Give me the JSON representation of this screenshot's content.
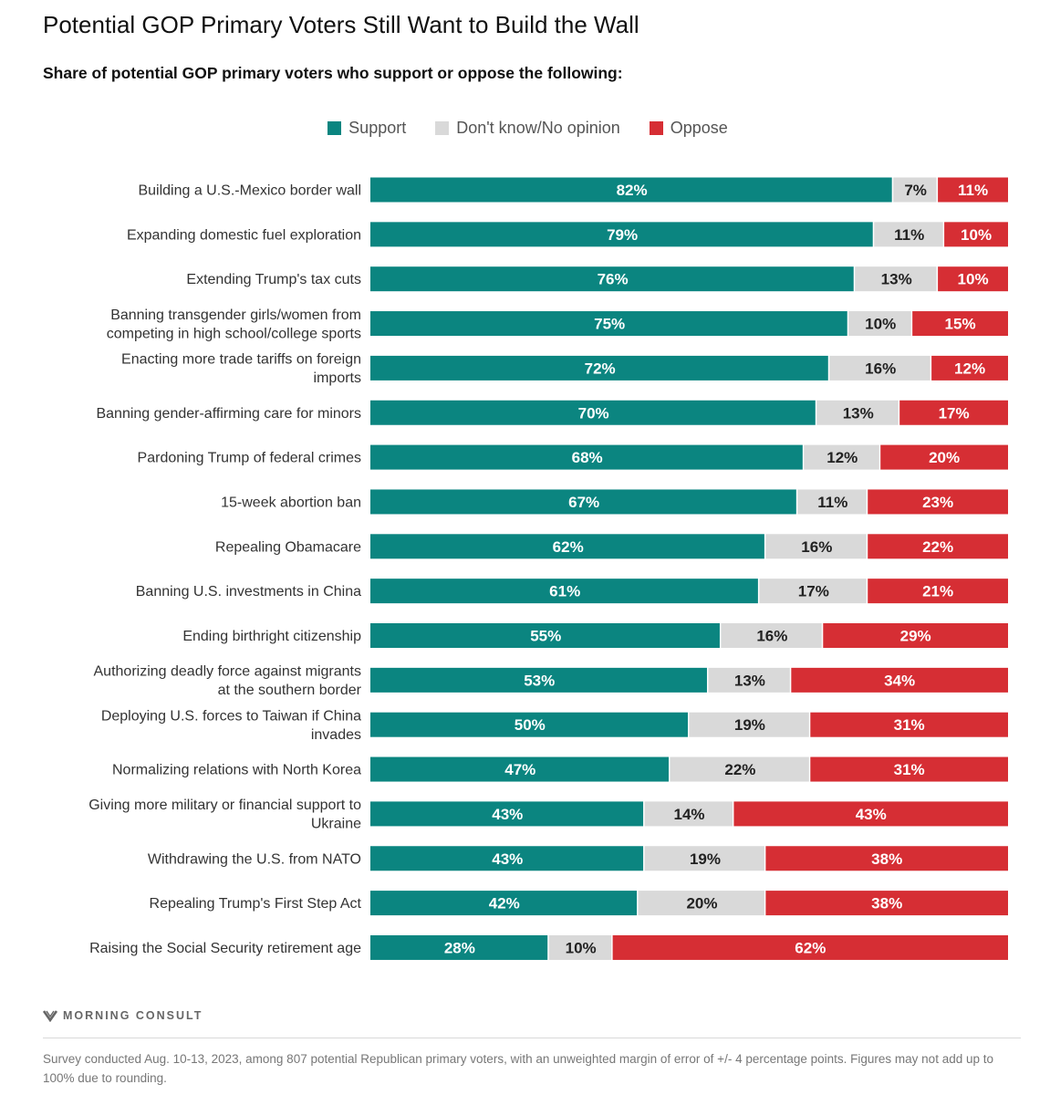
{
  "title": "Potential GOP Primary Voters Still Want to Build the Wall",
  "subtitle": "Share of potential GOP primary voters who support or oppose the following:",
  "legend": {
    "support": "Support",
    "dont_know": "Don't know/No opinion",
    "oppose": "Oppose"
  },
  "colors": {
    "support": "#0b8580",
    "dont_know": "#d9d9d9",
    "oppose": "#d62e34"
  },
  "brand": "MORNING CONSULT",
  "brand_icon": "morning-consult-logo-icon",
  "footnote": "Survey conducted Aug. 10-13, 2023, among 807 potential Republican primary voters, with an unweighted margin of error of +/- 4 percentage points. Figures may not add up to 100% due to rounding.",
  "chart_data": {
    "type": "bar",
    "orientation": "horizontal",
    "stacked": true,
    "title": "Potential GOP Primary Voters Still Want to Build the Wall",
    "subtitle": "Share of potential GOP primary voters who support or oppose the following:",
    "xlim": [
      0,
      100
    ],
    "unit": "%",
    "legend_position": "top-center",
    "categories": [
      "Building a U.S.-Mexico border wall",
      "Expanding domestic fuel exploration",
      "Extending Trump's tax cuts",
      "Banning transgender girls/women from competing in high school/college sports",
      "Enacting more trade tariffs on foreign imports",
      "Banning gender-affirming care for minors",
      "Pardoning Trump of federal crimes",
      "15-week abortion ban",
      "Repealing Obamacare",
      "Banning U.S. investments in China",
      "Ending birthright citizenship",
      "Authorizing deadly force against migrants at the southern border",
      "Deploying U.S. forces to Taiwan if China invades",
      "Normalizing relations with North Korea",
      "Giving more military or financial support to Ukraine",
      "Withdrawing the U.S. from NATO",
      "Repealing Trump's First Step Act",
      "Raising the Social Security retirement age"
    ],
    "series": [
      {
        "name": "Support",
        "key": "support",
        "values": [
          82,
          79,
          76,
          75,
          72,
          70,
          68,
          67,
          62,
          61,
          55,
          53,
          50,
          47,
          43,
          43,
          42,
          28
        ]
      },
      {
        "name": "Don't know/No opinion",
        "key": "dont_know",
        "values": [
          7,
          11,
          13,
          10,
          16,
          13,
          12,
          11,
          16,
          17,
          16,
          13,
          19,
          22,
          14,
          19,
          20,
          10
        ]
      },
      {
        "name": "Oppose",
        "key": "oppose",
        "values": [
          11,
          10,
          10,
          15,
          12,
          17,
          20,
          23,
          22,
          21,
          29,
          34,
          31,
          31,
          43,
          38,
          38,
          62
        ]
      }
    ]
  }
}
